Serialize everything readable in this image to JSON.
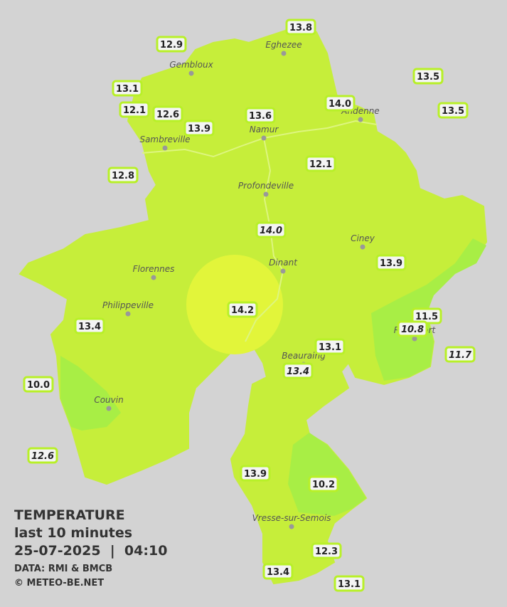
{
  "cities": [
    "Eghezee",
    "Gembloux",
    "Andenne",
    "Namur",
    "Sambreville",
    "Profondeville",
    "Ciney",
    "Dinant",
    "Florennes",
    "Philippeville",
    "Rochefort",
    "Beauraing",
    "Couvin",
    "Vresse-sur-Semois"
  ],
  "stations": [
    "13.8",
    "12.9",
    "13.5",
    "13.1",
    "14.0",
    "13.5",
    "12.1",
    "12.6",
    "13.6",
    "13.9",
    "12.8",
    "12.1",
    "14.0",
    "13.9",
    "14.2",
    "11.5",
    "10.8",
    "13.4",
    "13.1",
    "11.7",
    "13.4",
    "10.0",
    "12.6",
    "13.9",
    "10.2",
    "12.3",
    "13.4",
    "13.1"
  ],
  "legend": {
    "title": "TEMPERATURE",
    "period": "last 10 minutes",
    "datetime": "25-07-2025  |  04:10",
    "source": "DATA: RMI & BMCB",
    "credit": "© METEO-BE.NET"
  }
}
